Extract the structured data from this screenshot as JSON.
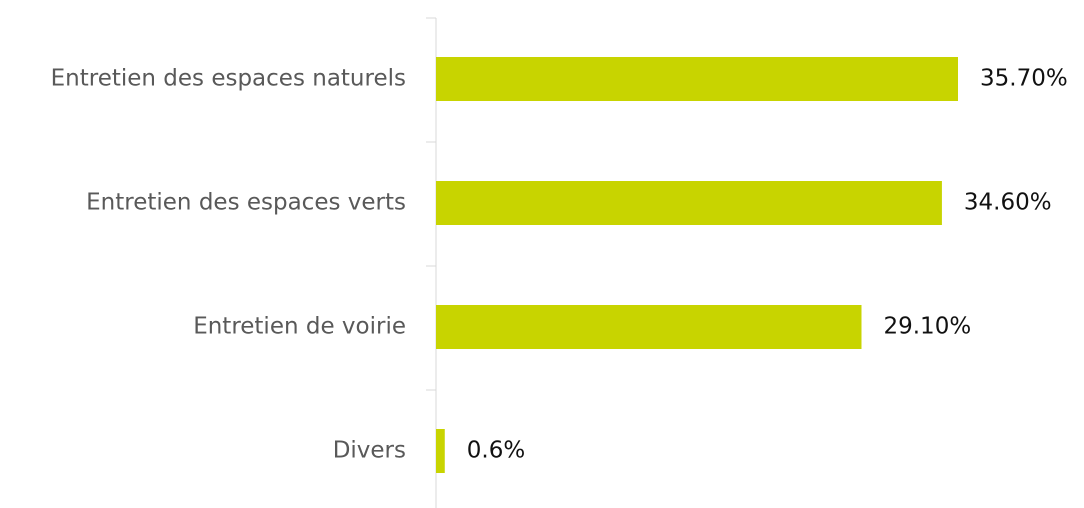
{
  "chart_data": {
    "type": "bar",
    "orientation": "horizontal",
    "categories": [
      "Entretien des espaces naturels",
      "Entretien des espaces verts",
      "Entretien de voirie",
      "Divers"
    ],
    "values": [
      35.7,
      34.6,
      29.1,
      0.6
    ],
    "value_labels": [
      "35.70%",
      "34.60%",
      "29.10%",
      "0.6%"
    ],
    "color": "#c8d400"
  }
}
